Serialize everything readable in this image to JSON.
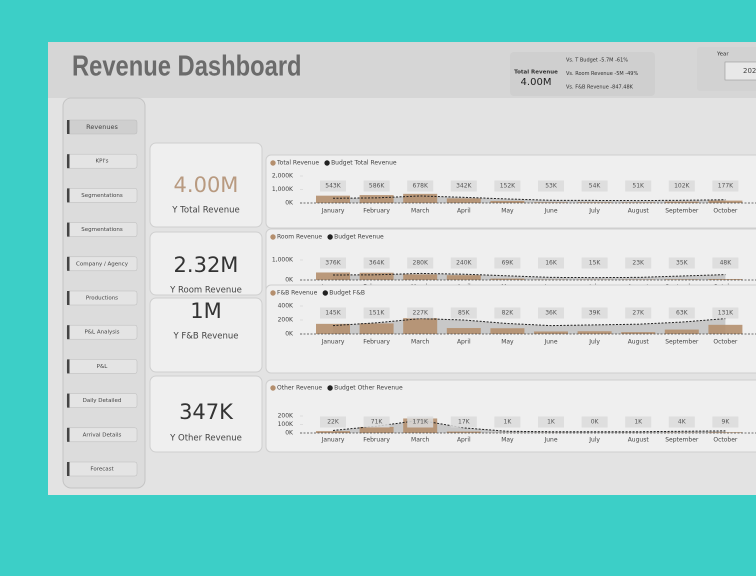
{
  "header": {
    "title": "Revenue Dashboard"
  },
  "summary": {
    "label": "Total Revenue",
    "value": "4.00M",
    "comparisons": [
      "Vs. T Budget -5.7M -61%",
      "Vs. Room Revenue -5M -49%",
      "Vs. F&B Revenue -847.48K"
    ]
  },
  "year": {
    "label": "Year",
    "value": "202"
  },
  "nav": [
    "Revenues",
    "KPI's",
    "Segmentations",
    "Segmentations",
    "Company / Agency",
    "Productions",
    "P&L Analysis",
    "P&L",
    "Daily Detailed",
    "Arrival Details",
    "Forecast"
  ],
  "cards": [
    {
      "value": "4.00M",
      "label": "Y Total Revenue"
    },
    {
      "value": "2.32M",
      "label": "Y Room Revenue"
    },
    {
      "value": "1M",
      "label": "Y F&B Revenue"
    },
    {
      "value": "347K",
      "label": "Y Other Revenue"
    }
  ],
  "charts": [
    {
      "type": "bar",
      "categories": [
        "January",
        "February",
        "March",
        "April",
        "May",
        "June",
        "July",
        "August",
        "September",
        "October"
      ],
      "series": [
        {
          "name": "Total Revenue",
          "color": "#b48f6e",
          "values": [
            543,
            586,
            678,
            342,
            152,
            53,
            54,
            51,
            102,
            177
          ],
          "value_labels": [
            "543K",
            "586K",
            "678K",
            "342K",
            "152K",
            "53K",
            "54K",
            "51K",
            "102K",
            "177K"
          ]
        },
        {
          "name": "Budget Total Revenue",
          "color": "#222222",
          "values": [
            350,
            380,
            520,
            420,
            300,
            200,
            190,
            180,
            200,
            240
          ]
        }
      ],
      "ylim": [
        0,
        2000
      ],
      "yticks": [
        {
          "value": 0,
          "label": "0K"
        },
        {
          "value": 1000,
          "label": "1,000K"
        },
        {
          "value": 2000,
          "label": "2,000K"
        }
      ]
    },
    {
      "type": "bar",
      "categories": [
        "January",
        "February",
        "March",
        "April",
        "May",
        "June",
        "July",
        "August",
        "September",
        "October"
      ],
      "series": [
        {
          "name": "Room Revenue",
          "color": "#b48f6e",
          "values": [
            376,
            364,
            280,
            240,
            69,
            16,
            15,
            23,
            35,
            48
          ],
          "value_labels": [
            "376K",
            "364K",
            "280K",
            "240K",
            "69K",
            "16K",
            "15K",
            "23K",
            "35K",
            "48K"
          ]
        },
        {
          "name": "Budget Revenue",
          "color": "#222222",
          "values": [
            250,
            260,
            330,
            290,
            210,
            130,
            120,
            130,
            200,
            270
          ]
        }
      ],
      "ylim": [
        0,
        1000
      ],
      "yticks": [
        {
          "value": 0,
          "label": "0K"
        },
        {
          "value": 1000,
          "label": "1,000K"
        }
      ]
    },
    {
      "type": "bar",
      "categories": [
        "January",
        "February",
        "March",
        "April",
        "May",
        "June",
        "July",
        "August",
        "September",
        "October"
      ],
      "series": [
        {
          "name": "F&B Revenue",
          "color": "#b48f6e",
          "values": [
            145,
            151,
            227,
            85,
            82,
            36,
            39,
            27,
            63,
            131
          ],
          "value_labels": [
            "145K",
            "151K",
            "227K",
            "85K",
            "82K",
            "36K",
            "39K",
            "27K",
            "63K",
            "131K"
          ]
        },
        {
          "name": "Budget F&B",
          "color": "#222222",
          "values": [
            120,
            160,
            220,
            200,
            150,
            120,
            130,
            140,
            170,
            220
          ]
        }
      ],
      "ylim": [
        0,
        400
      ],
      "yticks": [
        {
          "value": 0,
          "label": "0K"
        },
        {
          "value": 200,
          "label": "200K"
        },
        {
          "value": 400,
          "label": "400K"
        }
      ]
    },
    {
      "type": "bar",
      "categories": [
        "January",
        "February",
        "March",
        "April",
        "May",
        "June",
        "July",
        "August",
        "September",
        "October"
      ],
      "series": [
        {
          "name": "Other Revenue",
          "color": "#b48f6e",
          "values": [
            22,
            71,
            171,
            17,
            1,
            1,
            0,
            1,
            4,
            9
          ],
          "value_labels": [
            "22K",
            "71K",
            "171K",
            "17K",
            "1K",
            "1K",
            "0K",
            "1K",
            "4K",
            "9K"
          ]
        },
        {
          "name": "Budget Other Revenue",
          "color": "#222222",
          "values": [
            30,
            80,
            150,
            60,
            20,
            15,
            15,
            15,
            20,
            25
          ]
        }
      ],
      "ylim": [
        0,
        200
      ],
      "yticks": [
        {
          "value": 0,
          "label": "0K"
        },
        {
          "value": 100,
          "label": "100K"
        },
        {
          "value": 200,
          "label": "200K"
        }
      ]
    }
  ]
}
